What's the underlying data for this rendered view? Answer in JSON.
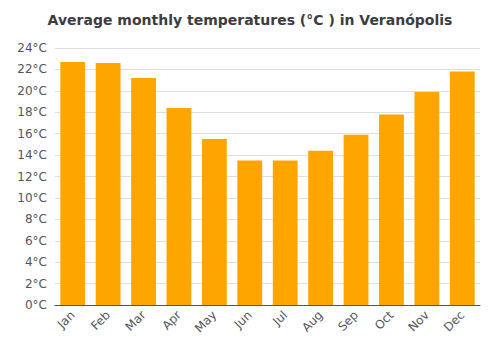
{
  "chart_data": {
    "type": "bar",
    "title": "Average monthly temperatures (°C ) in Veranópolis",
    "categories": [
      "Jan",
      "Feb",
      "Mar",
      "Apr",
      "May",
      "Jun",
      "Jul",
      "Aug",
      "Sep",
      "Oct",
      "Nov",
      "Dec"
    ],
    "values": [
      22.7,
      22.6,
      21.2,
      18.4,
      15.5,
      13.5,
      13.5,
      14.4,
      15.9,
      17.8,
      19.9,
      21.8
    ],
    "color": "#FFA500",
    "ylim": [
      0,
      24
    ],
    "yticks": [
      {
        "value": 0,
        "label": "0°C"
      },
      {
        "value": 2,
        "label": "2°C"
      },
      {
        "value": 4,
        "label": "4°C"
      },
      {
        "value": 6,
        "label": "6°C"
      },
      {
        "value": 8,
        "label": "8°C"
      },
      {
        "value": 10,
        "label": "10°C"
      },
      {
        "value": 12,
        "label": "12°C"
      },
      {
        "value": 14,
        "label": "14°C"
      },
      {
        "value": 16,
        "label": "16°C"
      },
      {
        "value": 18,
        "label": "18°C"
      },
      {
        "value": 20,
        "label": "20°C"
      },
      {
        "value": 22,
        "label": "22°C"
      },
      {
        "value": 24,
        "label": "24°C"
      }
    ],
    "grid": true
  }
}
